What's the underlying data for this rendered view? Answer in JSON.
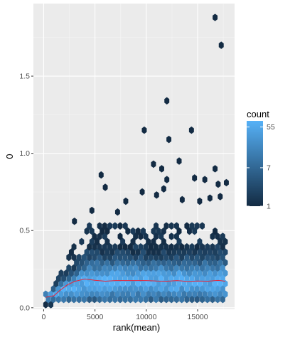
{
  "chart_data": {
    "type": "hexbin",
    "xlabel": "rank(mean)",
    "ylabel": "0",
    "xlim": [
      -1000,
      18600
    ],
    "ylim": [
      -0.01,
      1.97
    ],
    "x_ticks": [
      0,
      5000,
      10000,
      15000
    ],
    "x_tick_labels": [
      "0",
      "5000",
      "10000",
      "15000"
    ],
    "y_ticks": [
      0.0,
      0.5,
      1.0,
      1.5
    ],
    "y_tick_labels": [
      "0.0",
      "0.5",
      "1.0",
      "1.5"
    ],
    "grid": true,
    "legend": {
      "title": "count",
      "position": "right",
      "scale": "log",
      "breaks": [
        1,
        7,
        55
      ],
      "break_labels": [
        "1",
        "7",
        "55"
      ],
      "color_low": "#132B43",
      "color_high": "#56B1F7"
    },
    "trend_line": {
      "color": "#e8263a",
      "points": [
        [
          200,
          0.068
        ],
        [
          1000,
          0.078
        ],
        [
          1500,
          0.108
        ],
        [
          2300,
          0.148
        ],
        [
          3000,
          0.17
        ],
        [
          4000,
          0.186
        ],
        [
          5000,
          0.178
        ],
        [
          6000,
          0.172
        ],
        [
          7000,
          0.176
        ],
        [
          8000,
          0.176
        ],
        [
          9000,
          0.176
        ],
        [
          10000,
          0.176
        ],
        [
          11000,
          0.173
        ],
        [
          12000,
          0.172
        ],
        [
          13000,
          0.176
        ],
        [
          14000,
          0.17
        ],
        [
          15000,
          0.173
        ],
        [
          16000,
          0.172
        ],
        [
          17000,
          0.177
        ],
        [
          17700,
          0.172
        ]
      ]
    },
    "outliers": [
      [
        16700,
        1.88
      ],
      [
        17300,
        1.7
      ],
      [
        12000,
        1.34
      ],
      [
        9800,
        1.15
      ],
      [
        12200,
        1.09
      ],
      [
        14400,
        1.15
      ],
      [
        13200,
        0.95
      ],
      [
        16700,
        0.9
      ],
      [
        10700,
        0.93
      ],
      [
        11500,
        0.9
      ],
      [
        5600,
        0.86
      ],
      [
        12000,
        0.83
      ],
      [
        14700,
        0.84
      ],
      [
        17000,
        0.8
      ],
      [
        6000,
        0.78
      ],
      [
        11700,
        0.77
      ],
      [
        15700,
        0.83
      ],
      [
        17800,
        0.81
      ],
      [
        8000,
        0.69
      ],
      [
        9600,
        0.75
      ],
      [
        11000,
        0.73
      ],
      [
        13500,
        0.7
      ],
      [
        15200,
        0.69
      ],
      [
        16200,
        0.71
      ],
      [
        17200,
        0.72
      ],
      [
        4700,
        0.63
      ],
      [
        7200,
        0.62
      ],
      [
        3000,
        0.56
      ]
    ]
  }
}
